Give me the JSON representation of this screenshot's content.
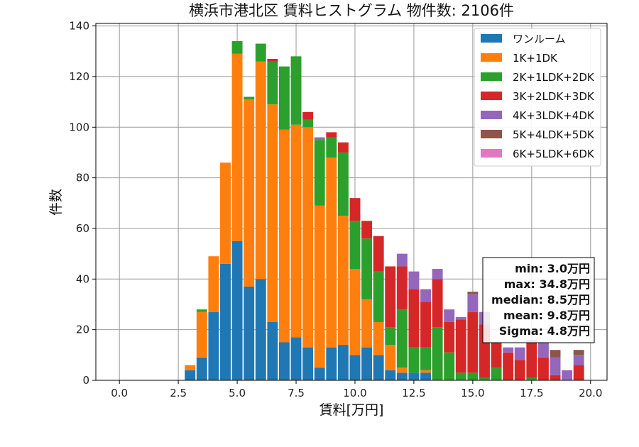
{
  "chart_data": {
    "type": "bar",
    "stacked": true,
    "title": "横浜市港北区 賃料ヒストグラム  物件数: 2106件",
    "xlabel": "賃料[万円]",
    "ylabel": "件数",
    "xlim": [
      -1.0,
      20.7
    ],
    "ylim": [
      0,
      141
    ],
    "xticks": [
      0.0,
      2.5,
      5.0,
      7.5,
      10.0,
      12.5,
      15.0,
      17.5,
      20.0
    ],
    "xtick_labels": [
      "0.0",
      "2.5",
      "5.0",
      "7.5",
      "10.0",
      "12.5",
      "15.0",
      "17.5",
      "20.0"
    ],
    "yticks": [
      0,
      20,
      40,
      60,
      80,
      100,
      120,
      140
    ],
    "ytick_labels": [
      "0",
      "20",
      "40",
      "60",
      "80",
      "100",
      "120",
      "140"
    ],
    "grid": true,
    "legend_position": "top-right",
    "bin_width": 0.5,
    "bin_starts": [
      2.75,
      3.25,
      3.75,
      4.25,
      4.75,
      5.25,
      5.75,
      6.25,
      6.75,
      7.25,
      7.75,
      8.25,
      8.75,
      9.25,
      9.75,
      10.25,
      10.75,
      11.25,
      11.75,
      12.25,
      12.75,
      13.25,
      13.75,
      14.25,
      14.75,
      15.25,
      15.75,
      16.25,
      16.75,
      17.25,
      17.75,
      18.25,
      18.75,
      19.25
    ],
    "series": [
      {
        "name": "ワンルーム",
        "color": "#1f77b4",
        "values": [
          4,
          9,
          27,
          46,
          55,
          37,
          40,
          23,
          15,
          17,
          13,
          5,
          13,
          14,
          10,
          13,
          10,
          4,
          3,
          3,
          3,
          0,
          0,
          0,
          0,
          0,
          0,
          0,
          0,
          0,
          0,
          0,
          0,
          0
        ]
      },
      {
        "name": "1K+1DK",
        "color": "#ff7f0e",
        "values": [
          2,
          18,
          22,
          40,
          74,
          74,
          86,
          86,
          84,
          84,
          87,
          64,
          75,
          51,
          34,
          19,
          13,
          10,
          2,
          0,
          1,
          0,
          0,
          0,
          0,
          0,
          0,
          0,
          0,
          0,
          0,
          0,
          0,
          0
        ]
      },
      {
        "name": "2K+1LDK+2DK",
        "color": "#2ca02c",
        "values": [
          0,
          1,
          0,
          0,
          5,
          1,
          7,
          17,
          25,
          27,
          3,
          26,
          8,
          25,
          19,
          24,
          20,
          7,
          23,
          10,
          9,
          21,
          11,
          3,
          3,
          1,
          5,
          0,
          0,
          1,
          0,
          0,
          0,
          0
        ]
      },
      {
        "name": "3K+2LDK+3DK",
        "color": "#d62728",
        "values": [
          0,
          0,
          0,
          0,
          0,
          0,
          0,
          1,
          0,
          0,
          3,
          0,
          2,
          4,
          9,
          7,
          14,
          24,
          17,
          23,
          18,
          19,
          12,
          21,
          24,
          21,
          10,
          11,
          8,
          14,
          9,
          2,
          0,
          6
        ]
      },
      {
        "name": "4K+3LDK+4DK",
        "color": "#9467bd",
        "values": [
          0,
          0,
          0,
          0,
          0,
          0,
          0,
          0,
          0,
          0,
          0,
          1,
          0,
          0,
          0,
          0,
          0,
          0,
          5,
          7,
          5,
          4,
          5,
          1,
          7,
          5,
          0,
          2,
          5,
          1,
          6,
          7,
          4,
          4
        ]
      },
      {
        "name": "5K+4LDK+5DK",
        "color": "#8c564b",
        "values": [
          0,
          0,
          0,
          0,
          0,
          0,
          0,
          0,
          0,
          0,
          0,
          0,
          0,
          0,
          0,
          0,
          0,
          0,
          0,
          0,
          0,
          0,
          0,
          0,
          1,
          0,
          0,
          0,
          0,
          0,
          0,
          3,
          0,
          2
        ]
      },
      {
        "name": "6K+5LDK+6DK",
        "color": "#e377c2",
        "values": [
          0,
          0,
          0,
          0,
          0,
          0,
          0,
          0,
          0,
          0,
          0,
          0,
          0,
          0,
          0,
          0,
          0,
          0,
          0,
          0,
          0,
          0,
          0,
          0,
          0,
          0,
          0,
          0,
          0,
          0,
          0,
          0,
          0,
          0
        ]
      }
    ],
    "stats": [
      "min: 3.0万円",
      "max: 34.8万円",
      "median: 8.5万円",
      "mean: 9.8万円",
      "Sigma: 4.8万円"
    ]
  }
}
